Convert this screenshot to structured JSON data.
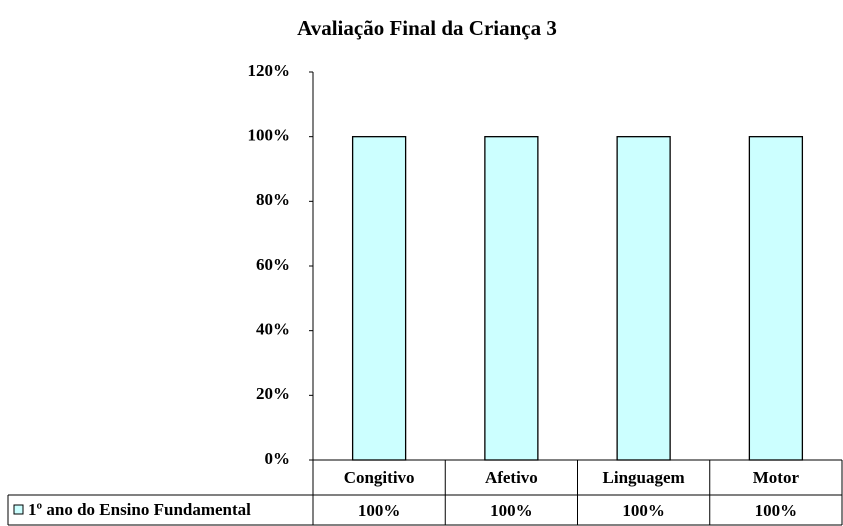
{
  "chart_data": {
    "type": "bar",
    "title": "Avaliação Final da Criança 3",
    "categories": [
      "Congitivo",
      "Afetivo",
      "Linguagem",
      "Motor"
    ],
    "series": [
      {
        "name": "1º ano do Ensino Fundamental",
        "color": "#ccffff",
        "values": [
          100,
          100,
          100,
          100
        ],
        "value_labels": [
          "100%",
          "100%",
          "100%",
          "100%"
        ]
      }
    ],
    "ylim": [
      0,
      120
    ],
    "yticks": [
      {
        "value": 0,
        "label": "0%"
      },
      {
        "value": 20,
        "label": "20%"
      },
      {
        "value": 40,
        "label": "40%"
      },
      {
        "value": 60,
        "label": "60%"
      },
      {
        "value": 80,
        "label": "80%"
      },
      {
        "value": 100,
        "label": "100%"
      },
      {
        "value": 120,
        "label": "120%"
      }
    ],
    "grid": false,
    "data_table": true
  }
}
